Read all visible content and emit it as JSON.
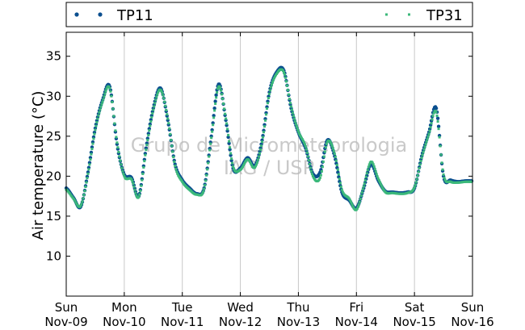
{
  "chart_data": {
    "type": "scatter",
    "title": "",
    "xlabel": "",
    "ylabel": "Air temperature (°C)",
    "ylim": [
      5,
      38
    ],
    "yticks": [
      10,
      15,
      20,
      25,
      30,
      35
    ],
    "xlim": [
      "2014-11-09 00:00",
      "2014-11-16 00:00"
    ],
    "xticks": [
      {
        "day": "Sun",
        "date": "Nov-09"
      },
      {
        "day": "Mon",
        "date": "Nov-10"
      },
      {
        "day": "Tue",
        "date": "Nov-11"
      },
      {
        "day": "Wed",
        "date": "Nov-12"
      },
      {
        "day": "Thu",
        "date": "Nov-13"
      },
      {
        "day": "Fri",
        "date": "Nov-14"
      },
      {
        "day": "Sat",
        "date": "Nov-15"
      },
      {
        "day": "Sun",
        "date": "Nov-16"
      }
    ],
    "grid": "vertical",
    "legend_position": "top",
    "watermark": [
      "Grupo de Micrometeorologia",
      "IAG / USP"
    ],
    "series": [
      {
        "name": "TP11",
        "color": "#0b4f8f",
        "marker": "dot",
        "x": [
          "2014-11-09 00:00",
          "2014-11-09 03:00",
          "2014-11-09 06:00",
          "2014-11-09 09:00",
          "2014-11-09 12:00",
          "2014-11-09 15:00",
          "2014-11-09 18:00",
          "2014-11-09 21:00",
          "2014-11-10 00:00",
          "2014-11-10 03:00",
          "2014-11-10 06:00",
          "2014-11-10 09:00",
          "2014-11-10 12:00",
          "2014-11-10 15:00",
          "2014-11-10 18:00",
          "2014-11-10 21:00",
          "2014-11-11 00:00",
          "2014-11-11 03:00",
          "2014-11-11 06:00",
          "2014-11-11 09:00",
          "2014-11-11 12:00",
          "2014-11-11 15:00",
          "2014-11-11 18:00",
          "2014-11-11 21:00",
          "2014-11-12 00:00",
          "2014-11-12 03:00",
          "2014-11-12 06:00",
          "2014-11-12 09:00",
          "2014-11-12 12:00",
          "2014-11-12 15:00",
          "2014-11-12 18:00",
          "2014-11-12 21:00",
          "2014-11-13 00:00",
          "2014-11-13 03:00",
          "2014-11-13 06:00",
          "2014-11-13 09:00",
          "2014-11-13 12:00",
          "2014-11-13 15:00",
          "2014-11-13 18:00",
          "2014-11-13 21:00",
          "2014-11-14 00:00",
          "2014-11-14 03:00",
          "2014-11-14 06:00",
          "2014-11-14 09:00",
          "2014-11-14 12:00",
          "2014-11-14 15:00",
          "2014-11-14 18:00",
          "2014-11-14 21:00",
          "2014-11-15 00:00",
          "2014-11-15 03:00",
          "2014-11-15 06:00",
          "2014-11-15 09:00",
          "2014-11-15 12:00",
          "2014-11-15 15:00",
          "2014-11-15 18:00",
          "2014-11-15 21:00",
          "2014-11-16 00:00"
        ],
        "y": [
          18.5,
          17.3,
          16.2,
          20.5,
          26.0,
          29.5,
          31.2,
          24.0,
          20.2,
          19.8,
          17.5,
          23.5,
          28.5,
          31.0,
          27.0,
          21.5,
          19.5,
          18.5,
          17.8,
          18.5,
          25.0,
          31.5,
          27.0,
          21.0,
          21.0,
          22.3,
          21.3,
          24.5,
          30.5,
          33.0,
          33.2,
          28.5,
          25.5,
          23.5,
          20.3,
          20.5,
          24.5,
          22.5,
          18.0,
          17.0,
          16.0,
          18.5,
          21.5,
          19.5,
          18.1,
          18.0,
          17.9,
          18.0,
          18.5,
          22.5,
          25.5,
          28.5,
          20.0,
          19.5,
          19.3,
          19.4,
          19.4
        ]
      },
      {
        "name": "TP31",
        "color": "#3bb87a",
        "marker": "square",
        "x": [
          "2014-11-09 00:00",
          "2014-11-09 03:00",
          "2014-11-09 06:00",
          "2014-11-09 09:00",
          "2014-11-09 12:00",
          "2014-11-09 15:00",
          "2014-11-09 18:00",
          "2014-11-09 21:00",
          "2014-11-10 00:00",
          "2014-11-10 03:00",
          "2014-11-10 06:00",
          "2014-11-10 09:00",
          "2014-11-10 12:00",
          "2014-11-10 15:00",
          "2014-11-10 18:00",
          "2014-11-10 21:00",
          "2014-11-11 00:00",
          "2014-11-11 03:00",
          "2014-11-11 06:00",
          "2014-11-11 09:00",
          "2014-11-11 12:00",
          "2014-11-11 15:00",
          "2014-11-11 18:00",
          "2014-11-11 21:00",
          "2014-11-12 00:00",
          "2014-11-12 03:00",
          "2014-11-12 06:00",
          "2014-11-12 09:00",
          "2014-11-12 12:00",
          "2014-11-12 15:00",
          "2014-11-12 18:00",
          "2014-11-12 21:00",
          "2014-11-13 00:00",
          "2014-11-13 03:00",
          "2014-11-13 06:00",
          "2014-11-13 09:00",
          "2014-11-13 12:00",
          "2014-11-13 15:00",
          "2014-11-13 18:00",
          "2014-11-13 21:00",
          "2014-11-14 00:00",
          "2014-11-14 03:00",
          "2014-11-14 06:00",
          "2014-11-14 09:00",
          "2014-11-14 12:00",
          "2014-11-14 15:00",
          "2014-11-14 18:00",
          "2014-11-14 21:00",
          "2014-11-15 00:00",
          "2014-11-15 03:00",
          "2014-11-15 06:00",
          "2014-11-15 09:00",
          "2014-11-15 12:00",
          "2014-11-15 15:00",
          "2014-11-15 18:00",
          "2014-11-15 21:00",
          "2014-11-16 00:00"
        ],
        "y": [
          18.3,
          17.2,
          16.3,
          20.3,
          25.8,
          29.3,
          31.0,
          24.2,
          20.0,
          19.6,
          17.4,
          23.3,
          28.3,
          30.8,
          27.2,
          21.3,
          19.3,
          18.3,
          17.7,
          18.4,
          24.8,
          31.2,
          27.2,
          21.2,
          20.8,
          22.1,
          21.1,
          24.3,
          30.3,
          32.8,
          33.0,
          28.7,
          25.6,
          23.7,
          20.0,
          19.8,
          24.3,
          22.8,
          18.3,
          17.2,
          15.8,
          18.7,
          21.8,
          19.7,
          18.0,
          17.9,
          17.8,
          17.9,
          18.6,
          22.3,
          25.3,
          28.0,
          20.2,
          19.3,
          19.2,
          19.3,
          19.3
        ]
      }
    ]
  }
}
